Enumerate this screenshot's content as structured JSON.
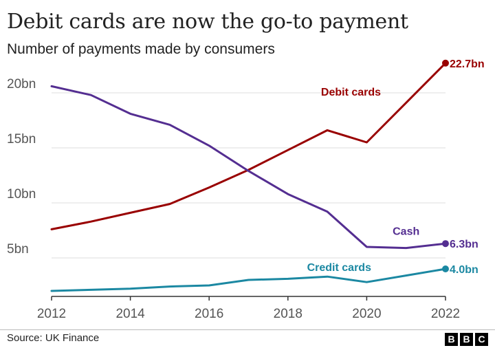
{
  "header": {
    "title": "Debit cards are now the go-to payment",
    "subtitle": "Number of payments made by consumers"
  },
  "footer": {
    "source": "Source: UK Finance",
    "logo_letters": [
      "B",
      "B",
      "C"
    ]
  },
  "chart_data": {
    "type": "line",
    "title": "Debit cards are now the go-to payment",
    "subtitle": "Number of payments made by consumers",
    "x": [
      2012,
      2013,
      2014,
      2015,
      2016,
      2017,
      2018,
      2019,
      2020,
      2021,
      2022
    ],
    "xticks": [
      "2012",
      "2014",
      "2016",
      "2018",
      "2020",
      "2022"
    ],
    "xtick_values": [
      2012,
      2014,
      2016,
      2018,
      2020,
      2022
    ],
    "yticks": [
      "5bn",
      "10bn",
      "15bn",
      "20bn"
    ],
    "ytick_values": [
      5,
      10,
      15,
      20
    ],
    "xlim": [
      2012,
      2022
    ],
    "ylim": [
      1.5,
      23.5
    ],
    "grid": true,
    "series": [
      {
        "name": "Debit cards",
        "color": "#990000",
        "values": [
          7.6,
          8.3,
          9.1,
          9.9,
          11.4,
          13.0,
          14.8,
          16.6,
          15.5,
          19.1,
          22.7
        ],
        "end_label": "22.7bn"
      },
      {
        "name": "Cash",
        "color": "#542e91",
        "values": [
          20.6,
          19.8,
          18.1,
          17.1,
          15.2,
          12.9,
          10.8,
          9.2,
          6.0,
          5.9,
          6.3
        ],
        "end_label": "6.3bn"
      },
      {
        "name": "Credit cards",
        "color": "#1b88a2",
        "values": [
          2.0,
          2.1,
          2.2,
          2.4,
          2.5,
          3.0,
          3.1,
          3.3,
          2.8,
          3.4,
          4.0
        ],
        "end_label": "4.0bn"
      }
    ]
  }
}
